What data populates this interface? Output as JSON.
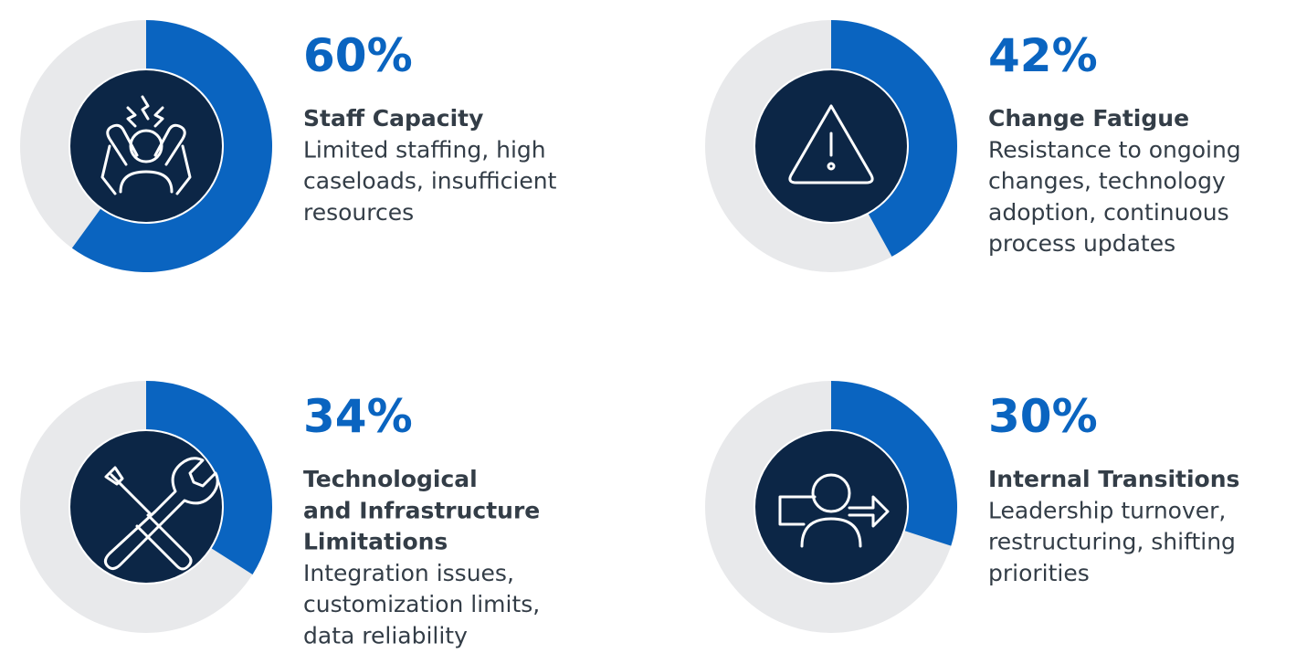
{
  "chart_data": [
    {
      "type": "donut",
      "values": [
        60
      ],
      "value_labels": [
        "60%"
      ],
      "color": "#0a64c0",
      "track_color": "#e8e9eb",
      "center_color": "#0c2646",
      "title": [
        "Staff Capacity"
      ],
      "description": [
        "Limited staffing, high",
        "caseloads, insufficient",
        "resources"
      ]
    },
    {
      "type": "donut",
      "values": [
        42
      ],
      "value_labels": [
        "42%"
      ],
      "color": "#0a64c0",
      "track_color": "#e8e9eb",
      "center_color": "#0c2646",
      "title": [
        "Change Fatigue"
      ],
      "description": [
        "Resistance to ongoing",
        "changes, technology",
        "adoption, continuous",
        "process updates"
      ]
    },
    {
      "type": "donut",
      "values": [
        34
      ],
      "value_labels": [
        "34%"
      ],
      "color": "#0a64c0",
      "track_color": "#e8e9eb",
      "center_color": "#0c2646",
      "title": [
        "Technological",
        "and Infrastructure",
        "Limitations"
      ],
      "description": [
        "Integration issues,",
        "customization limits,",
        "data reliability"
      ]
    },
    {
      "type": "donut",
      "values": [
        30
      ],
      "value_labels": [
        "30%"
      ],
      "color": "#0a64c0",
      "track_color": "#e8e9eb",
      "center_color": "#0c2646",
      "title": [
        "Internal Transitions"
      ],
      "description": [
        "Leadership turnover,",
        "restructuring, shifting",
        "priorities"
      ]
    }
  ]
}
